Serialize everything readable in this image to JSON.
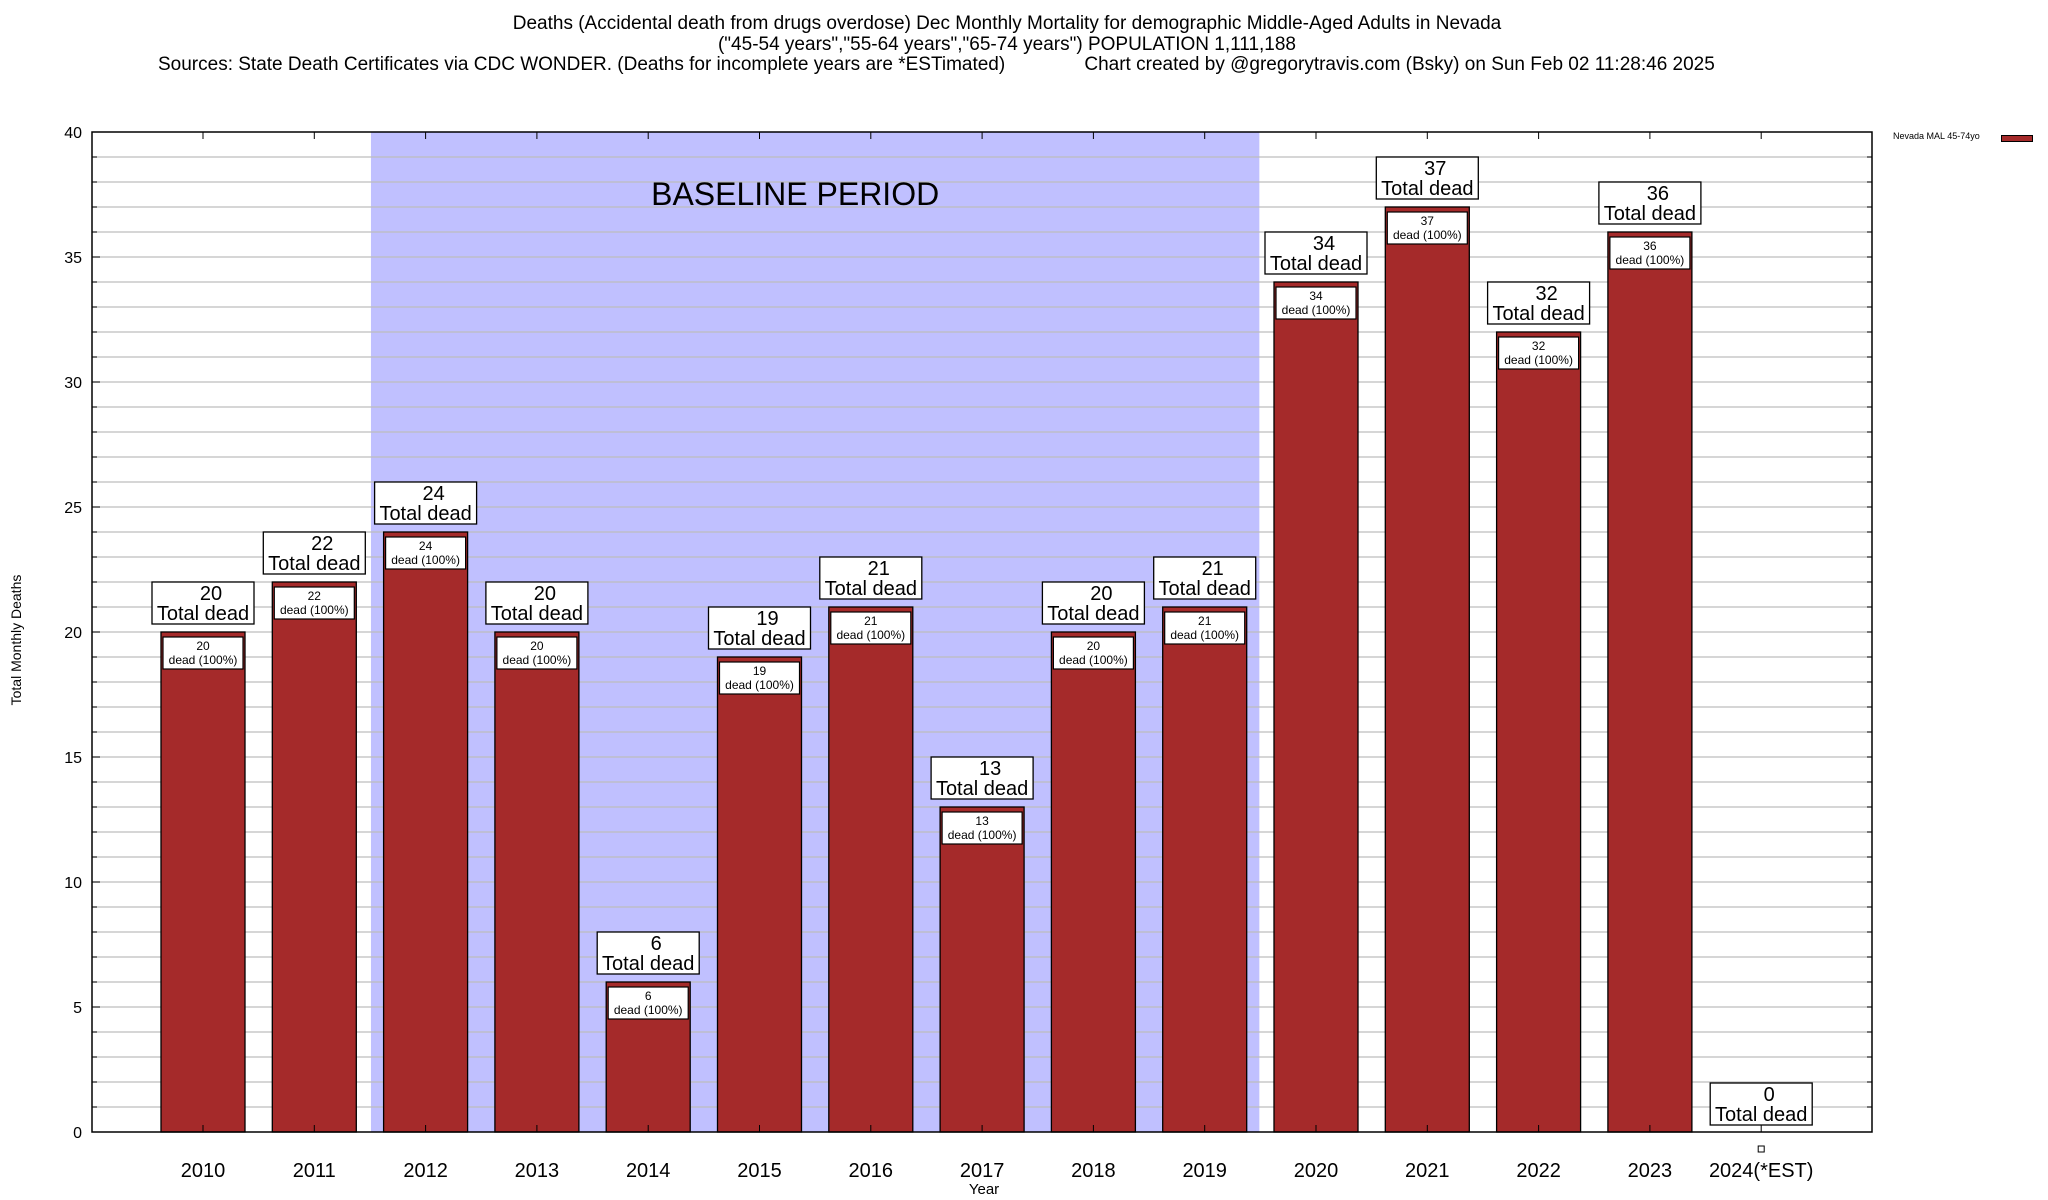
{
  "chart_data": {
    "type": "bar",
    "title": "Deaths (Accidental death from drugs overdose) Dec Monthly Mortality for demographic Middle-Aged Adults in Nevada",
    "subtitle": "(\"45-54 years\",\"55-64 years\",\"65-74 years\") POPULATION 1,111,188",
    "source_line": "Sources: State Death Certificates via CDC WONDER. (Deaths for incomplete years are *ESTimated)               Chart created by @gregorytravis.com (Bsky) on Sun Feb 02 11:28:46 2025",
    "xlabel": "Year",
    "ylabel": "Total Monthly Deaths",
    "ylim": [
      0,
      40
    ],
    "yticks": [
      0,
      5,
      10,
      15,
      20,
      25,
      30,
      35,
      40
    ],
    "minor_grid_step": 1,
    "grid": true,
    "categories": [
      "2010",
      "2011",
      "2012",
      "2013",
      "2014",
      "2015",
      "2016",
      "2017",
      "2018",
      "2019",
      "2020",
      "2021",
      "2022",
      "2023",
      "2024(*EST)"
    ],
    "series": [
      {
        "name": "Nevada MAL 45-74yo",
        "color": "#a52a2a",
        "values": [
          20,
          22,
          24,
          20,
          6,
          19,
          21,
          13,
          20,
          21,
          34,
          37,
          32,
          36,
          0
        ]
      }
    ],
    "total_label_suffix": "Total dead",
    "inner_label_suffix": "dead (100%)",
    "legend": {
      "label": "Nevada MAL 45-74yo",
      "placement": "top-right"
    },
    "annotation": {
      "text": "BASELINE PERIOD",
      "from_category": "2012",
      "to_category": "2019",
      "color": "#c0c0ff"
    }
  }
}
